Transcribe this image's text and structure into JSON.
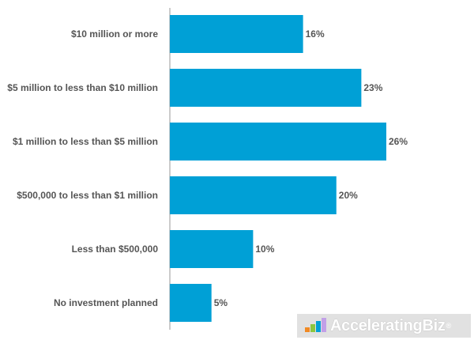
{
  "chart_data": {
    "type": "bar",
    "orientation": "horizontal",
    "categories": [
      "$10 million or more",
      "$5 million to less than $10 million",
      "$1 million to less than $5 million",
      "$500,000 to less than $1 million",
      "Less than $500,000",
      "No investment planned"
    ],
    "values": [
      16,
      23,
      26,
      20,
      10,
      5
    ],
    "value_labels": [
      "16%",
      "23%",
      "26%",
      "20%",
      "10%",
      "5%"
    ],
    "value_unit": "%",
    "title": "",
    "xlabel": "",
    "ylabel": "",
    "xlim": [
      0,
      30
    ],
    "grid": false,
    "legend": "none",
    "bar_color": "#00a0d6",
    "label_color": "#555555"
  },
  "watermark": {
    "text": "AcceleratingBiz",
    "reg_mark": "®",
    "colors": [
      "#f08a24",
      "#8cc63f",
      "#00a0d6",
      "#c2a0e8"
    ]
  }
}
